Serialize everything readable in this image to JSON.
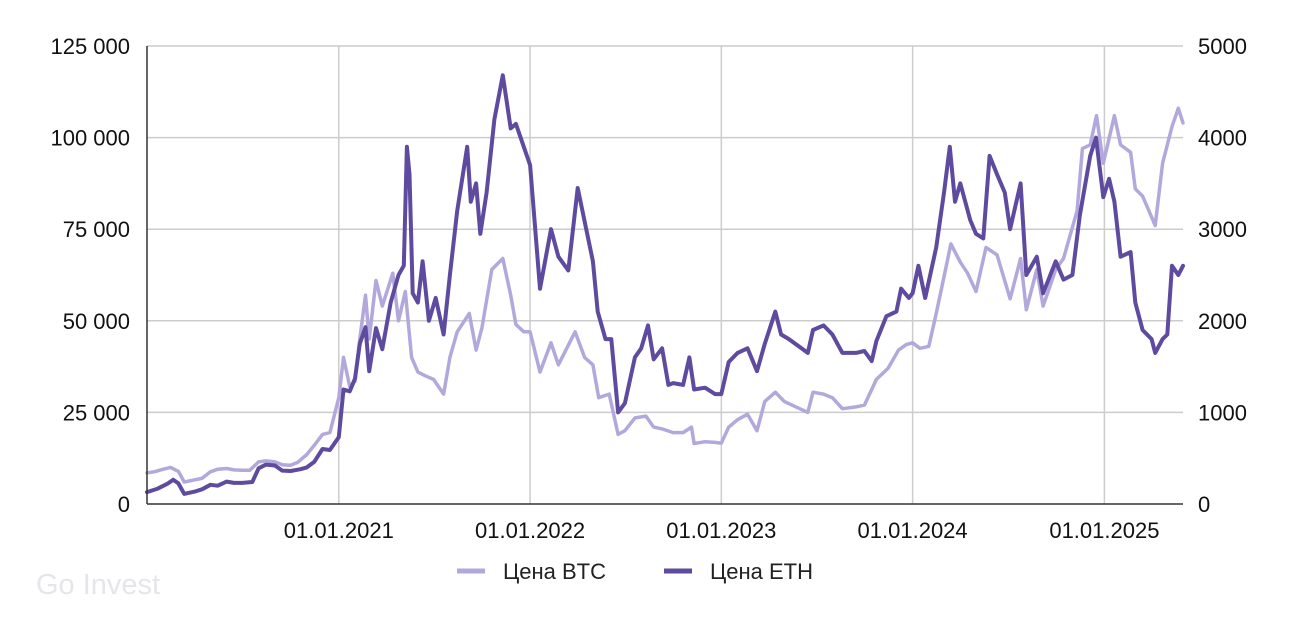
{
  "watermark": "Go Invest",
  "colors": {
    "btc": "#b3a8db",
    "eth": "#5e4a9e",
    "grid": "#cccccc",
    "text": "#111111",
    "watermark": "#e6e6ea"
  },
  "chart_data": {
    "type": "line",
    "title": "",
    "xlabel": "",
    "ylabel_left": "",
    "ylabel_right": "",
    "x_range": [
      "2020-01-01",
      "2025-05-31"
    ],
    "x_ticks": [
      {
        "date": "2021-01-01",
        "label": "01.01.2021"
      },
      {
        "date": "2022-01-01",
        "label": "01.01.2022"
      },
      {
        "date": "2023-01-01",
        "label": "01.01.2023"
      },
      {
        "date": "2024-01-01",
        "label": "01.01.2024"
      },
      {
        "date": "2025-01-01",
        "label": "01.01.2025"
      }
    ],
    "y_left": {
      "min": 0,
      "max": 125000,
      "ticks": [
        0,
        25000,
        50000,
        75000,
        100000,
        125000
      ],
      "tick_labels": [
        "0",
        "25 000",
        "50 000",
        "75 000",
        "100 000",
        "125 000"
      ]
    },
    "y_right": {
      "min": 0,
      "max": 5000,
      "ticks": [
        0,
        1000,
        2000,
        3000,
        4000,
        5000
      ],
      "tick_labels": [
        "0",
        "1000",
        "2000",
        "3000",
        "4000",
        "5000"
      ]
    },
    "grid": true,
    "legend_position": "bottom-center",
    "series": [
      {
        "name": "Цена BTC",
        "axis": "left",
        "color": "#b3a8db",
        "points": [
          [
            "2020-01-01",
            8500
          ],
          [
            "2020-01-15",
            8800
          ],
          [
            "2020-02-01",
            9500
          ],
          [
            "2020-02-15",
            10000
          ],
          [
            "2020-03-01",
            8900
          ],
          [
            "2020-03-12",
            6000
          ],
          [
            "2020-04-01",
            6600
          ],
          [
            "2020-04-15",
            7000
          ],
          [
            "2020-05-01",
            8800
          ],
          [
            "2020-05-15",
            9500
          ],
          [
            "2020-06-01",
            9700
          ],
          [
            "2020-06-15",
            9300
          ],
          [
            "2020-07-01",
            9200
          ],
          [
            "2020-07-15",
            9200
          ],
          [
            "2020-08-01",
            11500
          ],
          [
            "2020-08-15",
            11800
          ],
          [
            "2020-09-01",
            11500
          ],
          [
            "2020-09-15",
            10700
          ],
          [
            "2020-10-01",
            10600
          ],
          [
            "2020-10-15",
            11400
          ],
          [
            "2020-11-01",
            13500
          ],
          [
            "2020-11-15",
            16000
          ],
          [
            "2020-12-01",
            19000
          ],
          [
            "2020-12-15",
            19500
          ],
          [
            "2021-01-01",
            29000
          ],
          [
            "2021-01-10",
            40000
          ],
          [
            "2021-01-22",
            32000
          ],
          [
            "2021-02-01",
            33500
          ],
          [
            "2021-02-10",
            45000
          ],
          [
            "2021-02-21",
            57000
          ],
          [
            "2021-02-28",
            45000
          ],
          [
            "2021-03-13",
            61000
          ],
          [
            "2021-03-25",
            54000
          ],
          [
            "2021-04-14",
            63000
          ],
          [
            "2021-04-25",
            50000
          ],
          [
            "2021-05-08",
            58000
          ],
          [
            "2021-05-20",
            40000
          ],
          [
            "2021-06-01",
            36000
          ],
          [
            "2021-06-15",
            35000
          ],
          [
            "2021-07-01",
            34000
          ],
          [
            "2021-07-20",
            30000
          ],
          [
            "2021-08-01",
            40000
          ],
          [
            "2021-08-15",
            47000
          ],
          [
            "2021-09-07",
            52000
          ],
          [
            "2021-09-20",
            42000
          ],
          [
            "2021-10-01",
            48000
          ],
          [
            "2021-10-20",
            64000
          ],
          [
            "2021-11-10",
            67000
          ],
          [
            "2021-11-25",
            57000
          ],
          [
            "2021-12-05",
            49000
          ],
          [
            "2021-12-20",
            47000
          ],
          [
            "2022-01-01",
            47000
          ],
          [
            "2022-01-20",
            36000
          ],
          [
            "2022-02-10",
            44000
          ],
          [
            "2022-02-24",
            38000
          ],
          [
            "2022-03-28",
            47000
          ],
          [
            "2022-04-15",
            40000
          ],
          [
            "2022-05-01",
            38000
          ],
          [
            "2022-05-12",
            29000
          ],
          [
            "2022-06-01",
            30000
          ],
          [
            "2022-06-18",
            19000
          ],
          [
            "2022-07-01",
            20000
          ],
          [
            "2022-07-20",
            23500
          ],
          [
            "2022-08-10",
            24000
          ],
          [
            "2022-08-25",
            21000
          ],
          [
            "2022-09-10",
            20500
          ],
          [
            "2022-10-01",
            19500
          ],
          [
            "2022-10-20",
            19500
          ],
          [
            "2022-11-05",
            21000
          ],
          [
            "2022-11-10",
            16500
          ],
          [
            "2022-12-01",
            17000
          ],
          [
            "2022-12-20",
            16800
          ],
          [
            "2023-01-01",
            16600
          ],
          [
            "2023-01-15",
            21000
          ],
          [
            "2023-02-01",
            23000
          ],
          [
            "2023-02-20",
            24500
          ],
          [
            "2023-03-10",
            20000
          ],
          [
            "2023-03-25",
            28000
          ],
          [
            "2023-04-14",
            30500
          ],
          [
            "2023-05-01",
            28000
          ],
          [
            "2023-06-15",
            25000
          ],
          [
            "2023-06-25",
            30500
          ],
          [
            "2023-07-15",
            30000
          ],
          [
            "2023-08-01",
            29000
          ],
          [
            "2023-08-20",
            26000
          ],
          [
            "2023-09-15",
            26500
          ],
          [
            "2023-10-01",
            27000
          ],
          [
            "2023-10-24",
            34000
          ],
          [
            "2023-11-15",
            37000
          ],
          [
            "2023-12-05",
            42000
          ],
          [
            "2023-12-20",
            43500
          ],
          [
            "2024-01-01",
            44000
          ],
          [
            "2024-01-15",
            42500
          ],
          [
            "2024-02-01",
            43000
          ],
          [
            "2024-02-15",
            52000
          ],
          [
            "2024-03-01",
            62000
          ],
          [
            "2024-03-14",
            71000
          ],
          [
            "2024-04-01",
            66000
          ],
          [
            "2024-04-15",
            63000
          ],
          [
            "2024-05-01",
            58000
          ],
          [
            "2024-05-20",
            70000
          ],
          [
            "2024-06-10",
            68000
          ],
          [
            "2024-07-05",
            56000
          ],
          [
            "2024-07-25",
            67000
          ],
          [
            "2024-08-05",
            53000
          ],
          [
            "2024-08-25",
            64000
          ],
          [
            "2024-09-06",
            54000
          ],
          [
            "2024-09-30",
            64000
          ],
          [
            "2024-10-15",
            67000
          ],
          [
            "2024-11-10",
            80000
          ],
          [
            "2024-11-20",
            97000
          ],
          [
            "2024-12-05",
            98000
          ],
          [
            "2024-12-17",
            106000
          ],
          [
            "2024-12-30",
            93000
          ],
          [
            "2025-01-20",
            106000
          ],
          [
            "2025-02-01",
            98000
          ],
          [
            "2025-02-20",
            96000
          ],
          [
            "2025-03-01",
            86000
          ],
          [
            "2025-03-15",
            84000
          ],
          [
            "2025-04-08",
            76000
          ],
          [
            "2025-04-22",
            93000
          ],
          [
            "2025-05-10",
            103000
          ],
          [
            "2025-05-22",
            108000
          ],
          [
            "2025-05-31",
            104000
          ]
        ]
      },
      {
        "name": "Цена ETH",
        "axis": "right",
        "color": "#5e4a9e",
        "points": [
          [
            "2020-01-01",
            130
          ],
          [
            "2020-01-20",
            165
          ],
          [
            "2020-02-10",
            225
          ],
          [
            "2020-02-20",
            265
          ],
          [
            "2020-03-01",
            225
          ],
          [
            "2020-03-12",
            110
          ],
          [
            "2020-04-01",
            135
          ],
          [
            "2020-04-15",
            160
          ],
          [
            "2020-05-01",
            210
          ],
          [
            "2020-05-15",
            200
          ],
          [
            "2020-06-01",
            245
          ],
          [
            "2020-06-15",
            230
          ],
          [
            "2020-07-01",
            230
          ],
          [
            "2020-07-20",
            240
          ],
          [
            "2020-08-01",
            390
          ],
          [
            "2020-08-15",
            430
          ],
          [
            "2020-09-01",
            420
          ],
          [
            "2020-09-15",
            365
          ],
          [
            "2020-10-01",
            360
          ],
          [
            "2020-10-20",
            380
          ],
          [
            "2020-11-01",
            400
          ],
          [
            "2020-11-15",
            460
          ],
          [
            "2020-12-01",
            600
          ],
          [
            "2020-12-15",
            590
          ],
          [
            "2021-01-01",
            730
          ],
          [
            "2021-01-10",
            1250
          ],
          [
            "2021-01-22",
            1230
          ],
          [
            "2021-02-01",
            1370
          ],
          [
            "2021-02-10",
            1750
          ],
          [
            "2021-02-21",
            1930
          ],
          [
            "2021-02-28",
            1450
          ],
          [
            "2021-03-13",
            1920
          ],
          [
            "2021-03-25",
            1690
          ],
          [
            "2021-04-10",
            2200
          ],
          [
            "2021-04-25",
            2500
          ],
          [
            "2021-05-05",
            2600
          ],
          [
            "2021-05-11",
            3900
          ],
          [
            "2021-05-16",
            3600
          ],
          [
            "2021-05-22",
            2300
          ],
          [
            "2021-06-01",
            2200
          ],
          [
            "2021-06-10",
            2650
          ],
          [
            "2021-06-22",
            2000
          ],
          [
            "2021-07-05",
            2250
          ],
          [
            "2021-07-20",
            1850
          ],
          [
            "2021-08-01",
            2500
          ],
          [
            "2021-08-15",
            3200
          ],
          [
            "2021-09-03",
            3900
          ],
          [
            "2021-09-10",
            3300
          ],
          [
            "2021-09-20",
            3500
          ],
          [
            "2021-09-28",
            2950
          ],
          [
            "2021-10-10",
            3400
          ],
          [
            "2021-10-25",
            4200
          ],
          [
            "2021-11-10",
            4680
          ],
          [
            "2021-11-25",
            4100
          ],
          [
            "2021-12-05",
            4150
          ],
          [
            "2021-12-20",
            3900
          ],
          [
            "2022-01-01",
            3700
          ],
          [
            "2022-01-20",
            2350
          ],
          [
            "2022-02-10",
            3000
          ],
          [
            "2022-02-24",
            2700
          ],
          [
            "2022-03-15",
            2550
          ],
          [
            "2022-04-02",
            3450
          ],
          [
            "2022-04-20",
            2950
          ],
          [
            "2022-05-01",
            2650
          ],
          [
            "2022-05-10",
            2100
          ],
          [
            "2022-05-25",
            1800
          ],
          [
            "2022-06-05",
            1800
          ],
          [
            "2022-06-18",
            1000
          ],
          [
            "2022-07-01",
            1100
          ],
          [
            "2022-07-20",
            1600
          ],
          [
            "2022-08-01",
            1700
          ],
          [
            "2022-08-14",
            1950
          ],
          [
            "2022-08-25",
            1580
          ],
          [
            "2022-09-10",
            1700
          ],
          [
            "2022-09-22",
            1300
          ],
          [
            "2022-10-01",
            1320
          ],
          [
            "2022-10-20",
            1300
          ],
          [
            "2022-11-01",
            1600
          ],
          [
            "2022-11-10",
            1250
          ],
          [
            "2022-12-01",
            1270
          ],
          [
            "2022-12-20",
            1200
          ],
          [
            "2023-01-01",
            1200
          ],
          [
            "2023-01-15",
            1550
          ],
          [
            "2023-02-01",
            1650
          ],
          [
            "2023-02-20",
            1700
          ],
          [
            "2023-03-10",
            1450
          ],
          [
            "2023-03-25",
            1750
          ],
          [
            "2023-04-14",
            2100
          ],
          [
            "2023-04-25",
            1850
          ],
          [
            "2023-05-10",
            1800
          ],
          [
            "2023-06-15",
            1650
          ],
          [
            "2023-06-25",
            1900
          ],
          [
            "2023-07-15",
            1950
          ],
          [
            "2023-08-01",
            1850
          ],
          [
            "2023-08-20",
            1650
          ],
          [
            "2023-09-15",
            1650
          ],
          [
            "2023-10-01",
            1670
          ],
          [
            "2023-10-15",
            1560
          ],
          [
            "2023-10-24",
            1780
          ],
          [
            "2023-11-12",
            2050
          ],
          [
            "2023-12-01",
            2100
          ],
          [
            "2023-12-10",
            2350
          ],
          [
            "2023-12-25",
            2250
          ],
          [
            "2024-01-01",
            2300
          ],
          [
            "2024-01-12",
            2600
          ],
          [
            "2024-01-25",
            2250
          ],
          [
            "2024-02-15",
            2800
          ],
          [
            "2024-03-01",
            3400
          ],
          [
            "2024-03-12",
            3900
          ],
          [
            "2024-03-22",
            3300
          ],
          [
            "2024-04-01",
            3500
          ],
          [
            "2024-04-20",
            3100
          ],
          [
            "2024-05-01",
            2950
          ],
          [
            "2024-05-15",
            2900
          ],
          [
            "2024-05-27",
            3800
          ],
          [
            "2024-06-10",
            3600
          ],
          [
            "2024-06-25",
            3400
          ],
          [
            "2024-07-05",
            3000
          ],
          [
            "2024-07-25",
            3500
          ],
          [
            "2024-08-05",
            2500
          ],
          [
            "2024-08-25",
            2700
          ],
          [
            "2024-09-06",
            2300
          ],
          [
            "2024-09-30",
            2650
          ],
          [
            "2024-10-15",
            2450
          ],
          [
            "2024-11-01",
            2500
          ],
          [
            "2024-11-15",
            3150
          ],
          [
            "2024-12-05",
            3800
          ],
          [
            "2024-12-16",
            4000
          ],
          [
            "2024-12-30",
            3350
          ],
          [
            "2025-01-10",
            3550
          ],
          [
            "2025-01-20",
            3300
          ],
          [
            "2025-02-01",
            2700
          ],
          [
            "2025-02-20",
            2750
          ],
          [
            "2025-03-01",
            2200
          ],
          [
            "2025-03-15",
            1900
          ],
          [
            "2025-04-01",
            1800
          ],
          [
            "2025-04-08",
            1650
          ],
          [
            "2025-04-22",
            1800
          ],
          [
            "2025-05-01",
            1850
          ],
          [
            "2025-05-10",
            2600
          ],
          [
            "2025-05-22",
            2500
          ],
          [
            "2025-05-31",
            2600
          ]
        ]
      }
    ]
  }
}
